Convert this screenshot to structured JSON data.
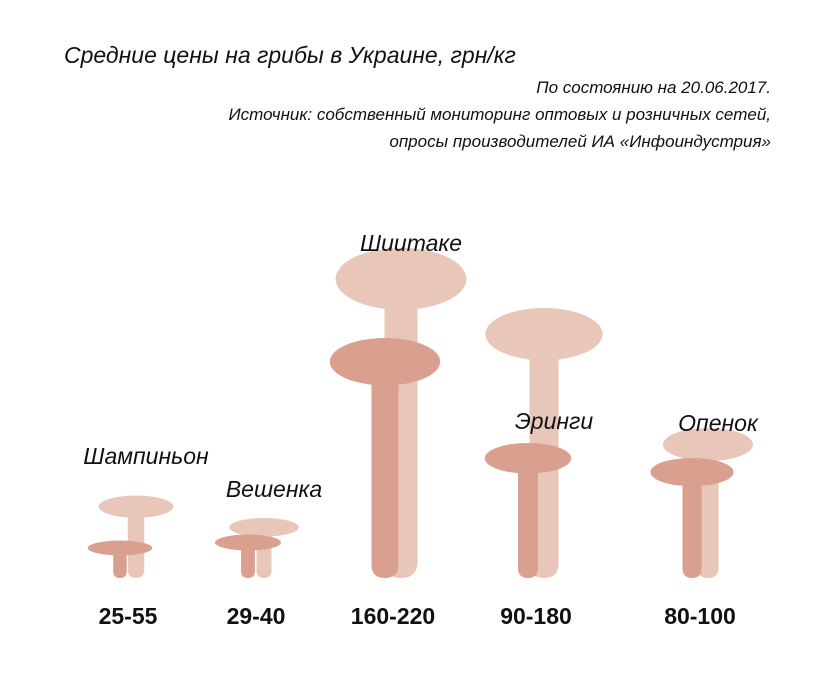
{
  "header": {
    "title": "Средние цены на грибы в Украине, грн/кг",
    "date_note": "По состоянию на 20.06.2017.",
    "source_line1": "Источник: собственный мониторинг оптовых и розничных сетей,",
    "source_line2": "опросы производителей ИА «Инфоиндустрия»"
  },
  "colors": {
    "max": "#e9c6ba",
    "min": "#d9a08f"
  },
  "chart_data": {
    "type": "bar",
    "title": "Средние цены на грибы в Украине, грн/кг",
    "unit": "грн/кг",
    "categories": [
      "Шампиньон",
      "Вешенка",
      "Шиитаке",
      "Эринги",
      "Опенок"
    ],
    "ranges": [
      "25-55",
      "29-40",
      "160-220",
      "90-180",
      "80-100"
    ],
    "series": [
      {
        "values": [
          25,
          29,
          160,
          90,
          80
        ]
      },
      {
        "values": [
          55,
          40,
          220,
          180,
          100
        ]
      }
    ]
  }
}
